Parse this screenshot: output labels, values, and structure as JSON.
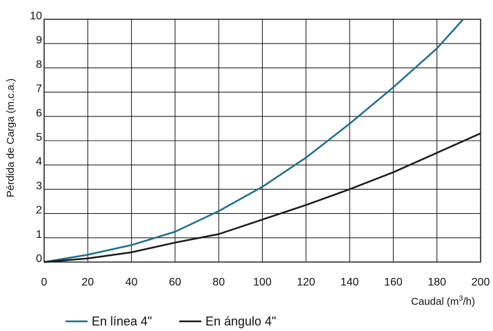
{
  "chart_data": {
    "type": "line",
    "title": "",
    "xlabel": "Caudal (m3/h)",
    "ylabel": "Pérdida de Carga (m.c.a.)",
    "xlim": [
      0,
      200
    ],
    "ylim": [
      0,
      10
    ],
    "x_ticks": [
      0,
      20,
      40,
      60,
      80,
      100,
      120,
      140,
      160,
      180,
      200
    ],
    "y_ticks": [
      0,
      1,
      2,
      3,
      4,
      5,
      6,
      7,
      8,
      9,
      10
    ],
    "grid": true,
    "legend_position": "bottom",
    "series": [
      {
        "name": "En línea 4\"",
        "color": "#1f6e8c",
        "points": [
          [
            0,
            0
          ],
          [
            20,
            0.3
          ],
          [
            40,
            0.7
          ],
          [
            60,
            1.25
          ],
          [
            80,
            2.1
          ],
          [
            100,
            3.1
          ],
          [
            120,
            4.3
          ],
          [
            140,
            5.7
          ],
          [
            160,
            7.2
          ],
          [
            180,
            8.8
          ],
          [
            192,
            10
          ]
        ]
      },
      {
        "name": "En ángulo 4\"",
        "color": "#1a1a1a",
        "points": [
          [
            0,
            0
          ],
          [
            20,
            0.15
          ],
          [
            40,
            0.4
          ],
          [
            60,
            0.8
          ],
          [
            80,
            1.15
          ],
          [
            100,
            1.75
          ],
          [
            120,
            2.35
          ],
          [
            140,
            3.0
          ],
          [
            160,
            3.7
          ],
          [
            180,
            4.5
          ],
          [
            200,
            5.3
          ]
        ]
      }
    ]
  }
}
